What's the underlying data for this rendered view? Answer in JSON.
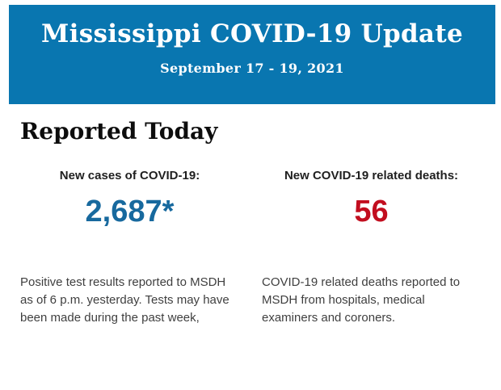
{
  "banner": {
    "title": "Mississippi COVID-19 Update",
    "date_range": "September 17 - 19, 2021",
    "background_color": "#0976b0",
    "text_color": "#ffffff"
  },
  "content": {
    "heading": "Reported Today",
    "stats": [
      {
        "id": "new-cases",
        "label": "New cases of COVID-19:",
        "value": "2,687*",
        "value_color": "#17699e",
        "description": "Positive test results reported to MSDH as of 6 p.m. yesterday. Tests may have been made during the past week,"
      },
      {
        "id": "new-deaths",
        "label": "New COVID-19 related deaths:",
        "value": "56",
        "value_color": "#c20e1f",
        "description": "COVID-19 related deaths reported to MSDH from hospitals, medical examiners and coroners."
      }
    ]
  }
}
